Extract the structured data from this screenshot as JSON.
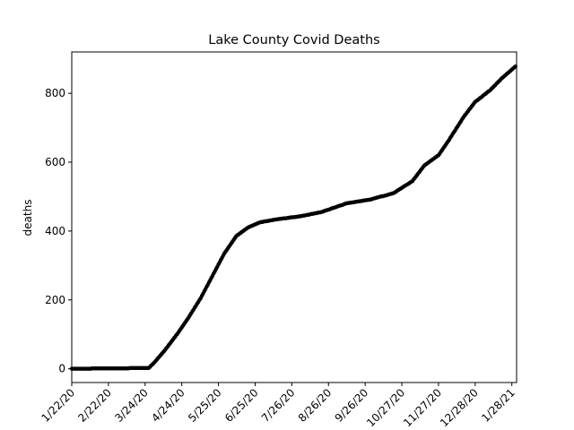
{
  "chart_data": {
    "type": "scatter",
    "title": "Lake County Covid Deaths",
    "xlabel": "",
    "ylabel": "deaths",
    "x_start": "1/22/20",
    "x_end": "1/31/21",
    "xlim": [
      "1/22/20",
      "2/1/21"
    ],
    "ylim": [
      -40,
      920
    ],
    "x_ticks": [
      "1/22/20",
      "2/22/20",
      "3/24/20",
      "4/24/20",
      "5/25/20",
      "6/25/20",
      "7/26/20",
      "8/26/20",
      "9/26/20",
      "10/27/20",
      "11/27/20",
      "12/28/20",
      "1/28/21"
    ],
    "y_ticks": [
      0,
      200,
      400,
      600,
      800
    ],
    "marker_color": "#000000",
    "grid": false,
    "legend": "none",
    "series": [
      {
        "x": [
          "1/22/20",
          "3/27/20",
          "3/31/20",
          "4/10/20",
          "4/20/20",
          "4/30/20",
          "5/10/20",
          "5/20/20",
          "5/30/20",
          "6/9/20",
          "6/19/20",
          "6/29/20",
          "7/15/20",
          "8/1/20",
          "8/20/20",
          "9/10/20",
          "10/1/20",
          "10/20/20",
          "11/5/20",
          "11/15/20",
          "11/27/20",
          "12/5/20",
          "12/18/20",
          "12/28/20",
          "1/10/21",
          "1/20/21",
          "1/31/21"
        ],
        "y": [
          0,
          2,
          15,
          55,
          100,
          150,
          205,
          270,
          335,
          385,
          410,
          425,
          435,
          442,
          455,
          480,
          492,
          510,
          545,
          590,
          620,
          660,
          730,
          775,
          810,
          845,
          878
        ]
      }
    ]
  }
}
